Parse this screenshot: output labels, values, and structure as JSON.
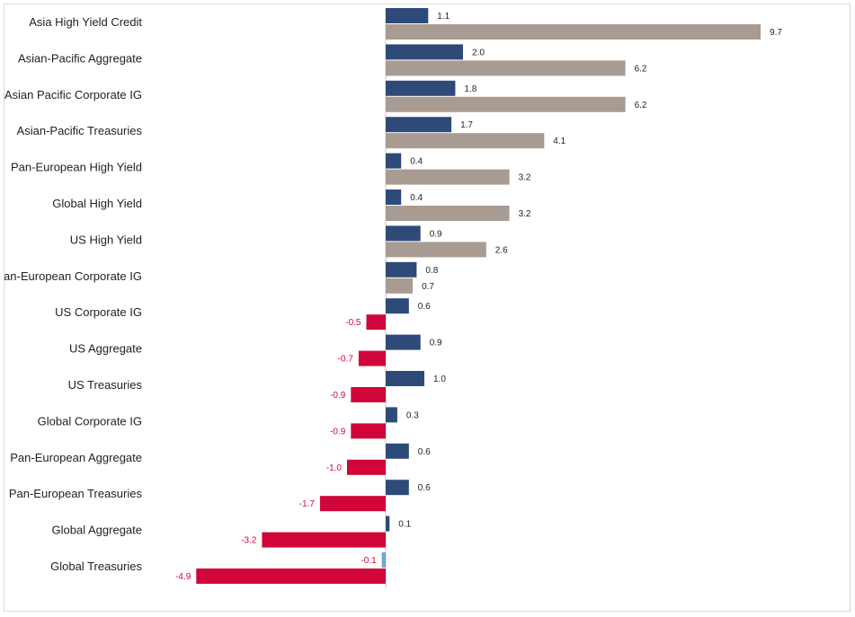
{
  "chart_data": {
    "type": "bar",
    "orientation": "horizontal",
    "categories": [
      "Asia High Yield Credit",
      "Asian-Pacific Aggregate",
      "Asian Pacific Corporate IG",
      "Asian-Pacific Treasuries",
      "Pan-European High Yield",
      "Global High Yield",
      "US High Yield",
      "Pan-European Corporate IG",
      "US Corporate IG",
      "US Aggregate",
      "US Treasuries",
      "Global Corporate IG",
      "Pan-European Aggregate",
      "Pan-European Treasuries",
      "Global Aggregate",
      "Global Treasuries"
    ],
    "series": [
      {
        "values": [
          1.1,
          2.0,
          1.8,
          1.7,
          0.4,
          0.4,
          0.9,
          0.8,
          0.6,
          0.9,
          1.0,
          0.3,
          0.6,
          0.6,
          0.1,
          -0.1
        ]
      },
      {
        "values": [
          9.7,
          6.2,
          6.2,
          4.1,
          3.2,
          3.2,
          2.6,
          0.7,
          -0.5,
          -0.7,
          -0.9,
          -0.9,
          -1.0,
          -1.7,
          -3.2,
          -4.9
        ]
      }
    ],
    "value_labels": {
      "series_0": [
        "1.1",
        "2.0",
        "1.8",
        "1.7",
        "0.4",
        "0.4",
        "0.9",
        "0.8",
        "0.6",
        "0.9",
        "1.0",
        "0.3",
        "0.6",
        "0.6",
        "0.1",
        "-0.1"
      ],
      "series_1": [
        "9.7",
        "6.2",
        "6.2",
        "4.1",
        "3.2",
        "3.2",
        "2.6",
        "0.7",
        "-0.5",
        "-0.7",
        "-0.9",
        "-0.9",
        "-1.0",
        "-1.7",
        "-3.2",
        "-4.9"
      ]
    },
    "xlim": [
      -4.9,
      9.7
    ],
    "grid": false,
    "legend": "none",
    "colors": {
      "series_0_positive": "#2e4a78",
      "series_0_negative": "#6fa3d8",
      "series_1_positive": "#a89b92",
      "series_1_negative": "#d0063a",
      "label_positive": "#222222",
      "label_negative": "#d0063a",
      "axis": "#c8c8c8"
    }
  }
}
